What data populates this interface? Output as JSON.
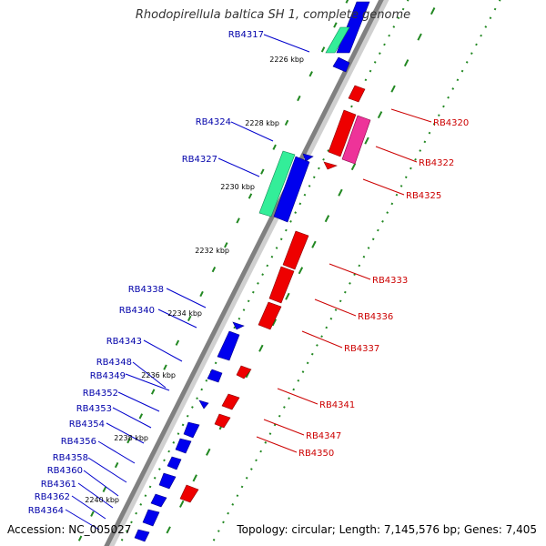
{
  "title": "Rhodopirellula baltica SH 1, complete genome",
  "accession": "Accession: NC_005027",
  "topology": "Topology: circular; Length: 7,145,576 bp; Genes: 7,405",
  "colors": {
    "forward": "#0000ee",
    "reverse": "#ee0000",
    "green": "#33ee99",
    "pink": "#ee3399",
    "axis": "#808080",
    "tick": "#228822",
    "label_blue": "#0000aa",
    "label_red": "#cc0000"
  },
  "kbp_labels": [
    "2226 kbp",
    "2228 kbp",
    "2230 kbp",
    "2232 kbp",
    "2234 kbp",
    "2236 kbp",
    "2238 kbp",
    "2240 kbp"
  ],
  "blue_labels": [
    "RB4317",
    "RB4324",
    "RB4327",
    "RB4338",
    "RB4340",
    "RB4343",
    "RB4348",
    "RB4349",
    "RB4352",
    "RB4353",
    "RB4354",
    "RB4356",
    "RB4358",
    "RB4360",
    "RB4361",
    "RB4362",
    "RB4364"
  ],
  "red_labels": [
    "RB4320",
    "RB4322",
    "RB4325",
    "RB4333",
    "RB4336",
    "RB4337",
    "RB4341",
    "RB4347",
    "RB4350"
  ]
}
